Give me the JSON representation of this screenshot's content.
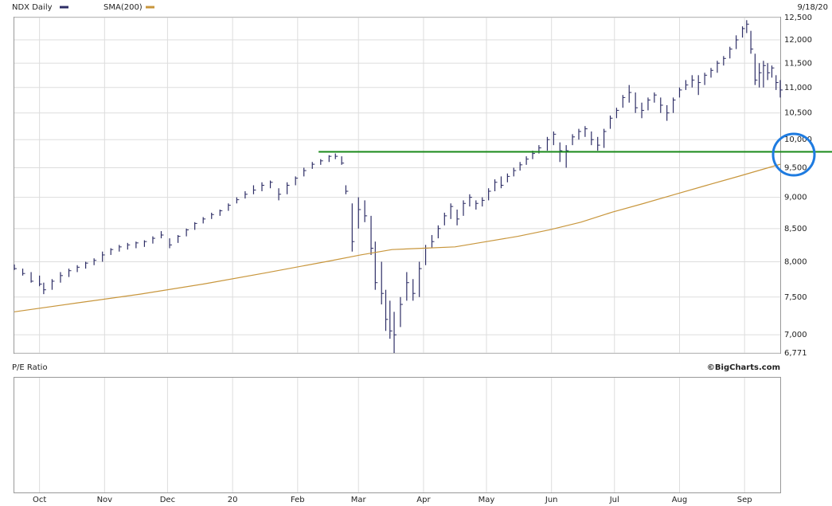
{
  "chart_data": [
    {
      "type": "ohlc",
      "date_label": "9/18/20",
      "log_scale": true,
      "ylim": [
        6771,
        12500
      ],
      "xlim": [
        0,
        365
      ],
      "yticks": [
        {
          "value": 6771,
          "label": "6,771"
        },
        {
          "value": 7000,
          "label": "7,000"
        },
        {
          "value": 7500,
          "label": "7,500"
        },
        {
          "value": 8000,
          "label": "8,000"
        },
        {
          "value": 8500,
          "label": "8,500"
        },
        {
          "value": 9000,
          "label": "9,000"
        },
        {
          "value": 9500,
          "label": "9,500"
        },
        {
          "value": 10000,
          "label": "10,000"
        },
        {
          "value": 10500,
          "label": "10,500"
        },
        {
          "value": 11000,
          "label": "11,000"
        },
        {
          "value": 11500,
          "label": "11,500"
        },
        {
          "value": 12000,
          "label": "12,000"
        },
        {
          "value": 12500,
          "label": "12,500"
        }
      ],
      "grid": true,
      "reference_line": {
        "value": 9780,
        "start": 145,
        "color": "#1a8a1a"
      },
      "series": [
        {
          "name": "NDX Daily",
          "color": "#2e2e66",
          "x": [
            0,
            4,
            8,
            12,
            14,
            18,
            22,
            26,
            30,
            34,
            38,
            42,
            46,
            50,
            54,
            58,
            62,
            66,
            70,
            74,
            78,
            82,
            86,
            90,
            94,
            98,
            102,
            106,
            110,
            114,
            118,
            122,
            126,
            130,
            134,
            138,
            142,
            146,
            150,
            153,
            156,
            158,
            161,
            164,
            167,
            170,
            172,
            175,
            177,
            179,
            181,
            184,
            187,
            190,
            193,
            196,
            199,
            202,
            205,
            208,
            211,
            214,
            217,
            220,
            223,
            226,
            229,
            232,
            235,
            238,
            241,
            244,
            247,
            250,
            254,
            257,
            260,
            263,
            266,
            269,
            272,
            275,
            278,
            281,
            284,
            287,
            290,
            293,
            296,
            299,
            302,
            305,
            308,
            311,
            314,
            317,
            320,
            323,
            326,
            329,
            332,
            335,
            338,
            341,
            344,
            347,
            349,
            351,
            353,
            355,
            357,
            359,
            361,
            363,
            365
          ],
          "high": [
            7960,
            7900,
            7850,
            7800,
            7700,
            7750,
            7850,
            7900,
            7950,
            8000,
            8050,
            8150,
            8200,
            8250,
            8280,
            8300,
            8320,
            8380,
            8460,
            8350,
            8400,
            8500,
            8600,
            8680,
            8750,
            8800,
            8900,
            9000,
            9100,
            9200,
            9250,
            9280,
            9150,
            9250,
            9350,
            9500,
            9600,
            9650,
            9720,
            9750,
            9700,
            9200,
            8900,
            9000,
            8950,
            8700,
            8300,
            8000,
            7600,
            7450,
            7300,
            7500,
            7850,
            7750,
            8000,
            8250,
            8400,
            8550,
            8750,
            8900,
            8800,
            8950,
            9050,
            8950,
            9000,
            9150,
            9300,
            9350,
            9400,
            9500,
            9600,
            9700,
            9800,
            9900,
            10050,
            10150,
            9950,
            9900,
            10100,
            10200,
            10250,
            10150,
            10050,
            10200,
            10450,
            10600,
            10850,
            11050,
            10900,
            10700,
            10800,
            10900,
            10800,
            10650,
            10800,
            11000,
            11150,
            11250,
            11250,
            11300,
            11400,
            11550,
            11650,
            11850,
            12100,
            12300,
            12440,
            12200,
            11700,
            11500,
            11550,
            11500,
            11450,
            11250,
            11150
          ],
          "low": [
            7880,
            7800,
            7700,
            7650,
            7540,
            7600,
            7700,
            7780,
            7850,
            7900,
            7950,
            8000,
            8100,
            8150,
            8180,
            8200,
            8220,
            8270,
            8350,
            8200,
            8280,
            8380,
            8480,
            8580,
            8650,
            8700,
            8780,
            8900,
            8980,
            9050,
            9100,
            9150,
            8950,
            9050,
            9200,
            9350,
            9480,
            9550,
            9600,
            9650,
            9550,
            9050,
            8150,
            8500,
            8600,
            8100,
            7600,
            7400,
            7050,
            6950,
            6771,
            7100,
            7450,
            7450,
            7500,
            7950,
            8200,
            8350,
            8550,
            8650,
            8550,
            8700,
            8850,
            8800,
            8850,
            8950,
            9100,
            9150,
            9250,
            9350,
            9450,
            9550,
            9650,
            9750,
            9800,
            9900,
            9600,
            9500,
            9900,
            10000,
            10050,
            9900,
            9800,
            9850,
            10200,
            10400,
            10600,
            10700,
            10500,
            10400,
            10550,
            10700,
            10500,
            10350,
            10500,
            10800,
            10950,
            11000,
            10850,
            11050,
            11200,
            11300,
            11450,
            11600,
            11800,
            12050,
            12150,
            11700,
            11050,
            11000,
            11000,
            11150,
            11200,
            10950,
            10800
          ],
          "close": [
            7900,
            7830,
            7720,
            7680,
            7600,
            7720,
            7800,
            7870,
            7920,
            7980,
            8020,
            8100,
            8180,
            8220,
            8250,
            8280,
            8300,
            8350,
            8400,
            8250,
            8380,
            8480,
            8580,
            8650,
            8720,
            8780,
            8870,
            8960,
            9050,
            9120,
            9200,
            9250,
            9050,
            9200,
            9320,
            9450,
            9560,
            9620,
            9700,
            9700,
            9580,
            9100,
            8300,
            8800,
            8700,
            8200,
            7700,
            7550,
            7200,
            7050,
            7000,
            7400,
            7700,
            7550,
            7900,
            8200,
            8300,
            8500,
            8700,
            8850,
            8650,
            8900,
            9000,
            8900,
            8950,
            9100,
            9250,
            9200,
            9350,
            9450,
            9550,
            9650,
            9750,
            9850,
            10000,
            10100,
            9800,
            9800,
            10050,
            10150,
            10200,
            10000,
            9900,
            10150,
            10400,
            10550,
            10800,
            10900,
            10600,
            10550,
            10750,
            10850,
            10650,
            10500,
            10750,
            10950,
            11050,
            11150,
            11100,
            11250,
            11350,
            11500,
            11600,
            11800,
            12000,
            12250,
            12350,
            11800,
            11150,
            11300,
            11450,
            11300,
            11400,
            11100,
            10950
          ]
        },
        {
          "name": "SMA(200)",
          "color": "#c8963c",
          "type": "line",
          "x": [
            0,
            30,
            60,
            90,
            120,
            150,
            165,
            180,
            195,
            210,
            225,
            240,
            255,
            270,
            285,
            300,
            315,
            330,
            345,
            365
          ],
          "values": [
            7300,
            7420,
            7540,
            7680,
            7840,
            8010,
            8100,
            8180,
            8200,
            8220,
            8300,
            8380,
            8480,
            8600,
            8760,
            8900,
            9050,
            9200,
            9350,
            9560
          ]
        }
      ]
    },
    {
      "type": "panel",
      "title": "P/E Ratio",
      "credit": "©BigCharts.com",
      "xlim": [
        0,
        365
      ],
      "xticks": [
        {
          "value": 12,
          "label": "Oct"
        },
        {
          "value": 43,
          "label": "Nov"
        },
        {
          "value": 73,
          "label": "Dec"
        },
        {
          "value": 104,
          "label": "20"
        },
        {
          "value": 135,
          "label": "Feb"
        },
        {
          "value": 164,
          "label": "Mar"
        },
        {
          "value": 195,
          "label": "Apr"
        },
        {
          "value": 225,
          "label": "May"
        },
        {
          "value": 256,
          "label": "Jun"
        },
        {
          "value": 286,
          "label": "Jul"
        },
        {
          "value": 317,
          "label": "Aug"
        },
        {
          "value": 348,
          "label": "Sep"
        }
      ]
    }
  ]
}
